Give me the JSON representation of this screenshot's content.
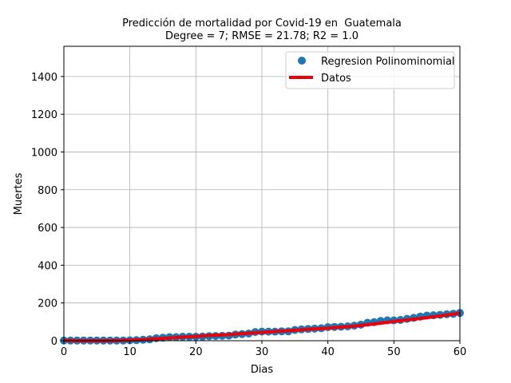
{
  "chart_data": {
    "type": "scatter",
    "title": "Predicción de mortalidad por Covid-19 en  Guatemala",
    "subtitle": "Degree = 7; RMSE = 21.78; R2 = 1.0",
    "xlabel": "Dias",
    "ylabel": "Muertes",
    "xlim": [
      0,
      60
    ],
    "ylim": [
      0,
      1560
    ],
    "xticks": [
      0,
      10,
      20,
      30,
      40,
      50,
      60
    ],
    "yticks": [
      0,
      200,
      400,
      600,
      800,
      1000,
      1200,
      1400
    ],
    "grid": true,
    "legend_position": "top-right",
    "series": [
      {
        "name": "Regresion Polinominomial",
        "kind": "scatter",
        "color": "#1f77b4",
        "x": [
          0,
          1,
          2,
          3,
          4,
          5,
          6,
          7,
          8,
          9,
          10,
          11,
          12,
          13,
          14,
          15,
          16,
          17,
          18,
          19,
          20,
          21,
          22,
          23,
          24,
          25,
          26,
          27,
          28,
          29,
          30,
          31,
          32,
          33,
          34,
          35,
          36,
          37,
          38,
          39,
          40,
          41,
          42,
          43,
          44,
          45,
          46,
          47,
          48,
          49,
          50,
          51,
          52,
          53,
          54,
          55,
          56,
          57,
          58,
          59,
          60
        ],
        "y": [
          1,
          1,
          1,
          1,
          1,
          1,
          1,
          1,
          1,
          1,
          2,
          3,
          5,
          7,
          13,
          16,
          19,
          19,
          21,
          21,
          21,
          22,
          24,
          25,
          26,
          27,
          33,
          35,
          38,
          46,
          48,
          48,
          48,
          50,
          50,
          57,
          60,
          62,
          64,
          66,
          72,
          73,
          74,
          76,
          80,
          85,
          95,
          98,
          105,
          108,
          108,
          110,
          116,
          121,
          128,
          133,
          135,
          137,
          140,
          143,
          147
        ]
      },
      {
        "name": "Datos",
        "kind": "line",
        "color": "#e8000b",
        "x": [
          0,
          2,
          4,
          6,
          8,
          10,
          12,
          14,
          16,
          18,
          20,
          22,
          24,
          26,
          28,
          30,
          32,
          34,
          36,
          38,
          40,
          42,
          44,
          46,
          48,
          50,
          52,
          54,
          56,
          58,
          60
        ],
        "y": [
          2,
          0,
          0,
          0,
          1,
          3,
          6,
          10,
          15,
          19,
          23,
          28,
          31,
          35,
          40,
          44,
          49,
          53,
          58,
          62,
          67,
          72,
          77,
          85,
          93,
          102,
          110,
          118,
          127,
          136,
          146
        ]
      }
    ]
  }
}
